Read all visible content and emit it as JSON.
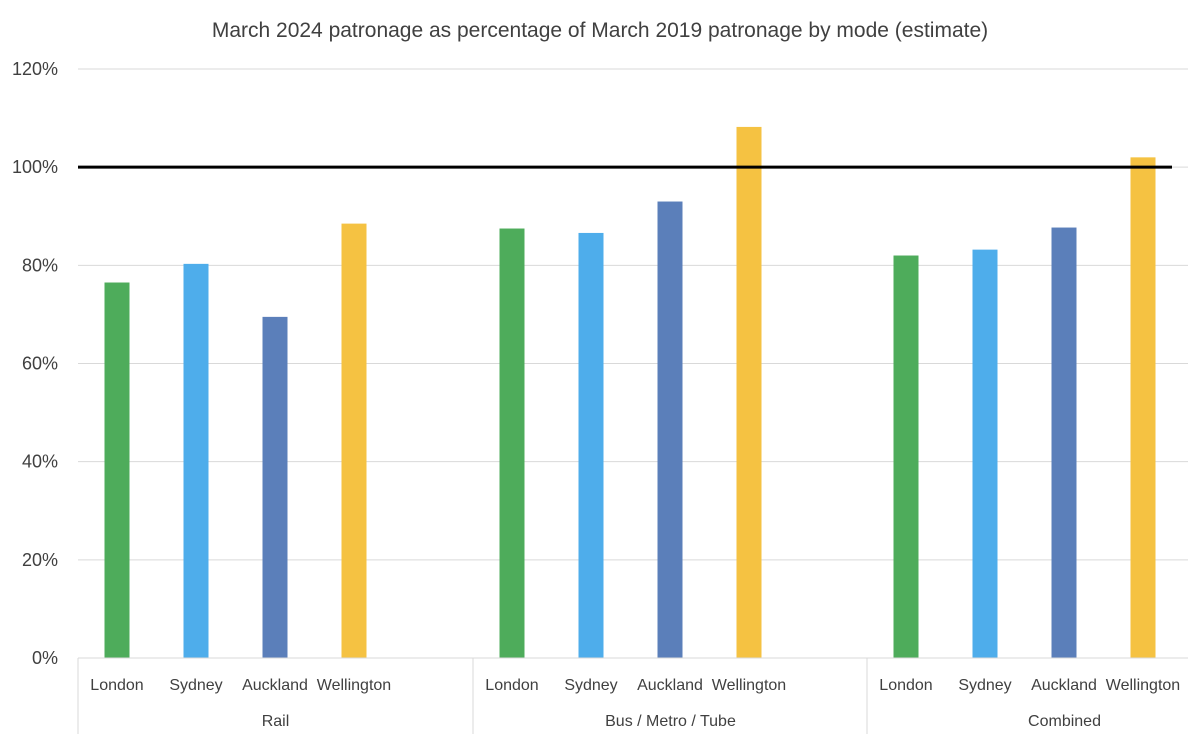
{
  "chart_data": {
    "type": "bar",
    "title": "March 2024 patronage as percentage of March 2019 patronage by mode (estimate)",
    "xlabel": "",
    "ylabel": "",
    "ylim": [
      0,
      120
    ],
    "yticks": [
      "0%",
      "20%",
      "40%",
      "60%",
      "80%",
      "100%",
      "120%"
    ],
    "ytick_values": [
      0,
      20,
      40,
      60,
      80,
      100,
      120
    ],
    "grid": true,
    "reference_line": 100,
    "groups": [
      {
        "label": "Rail",
        "bars": [
          {
            "category": "London",
            "value": 76.5
          },
          {
            "category": "Sydney",
            "value": 80.3
          },
          {
            "category": "Auckland",
            "value": 69.5
          },
          {
            "category": "Wellington",
            "value": 88.5
          }
        ]
      },
      {
        "label": "Bus / Metro / Tube",
        "bars": [
          {
            "category": "London",
            "value": 87.5
          },
          {
            "category": "Sydney",
            "value": 86.6
          },
          {
            "category": "Auckland",
            "value": 93.0
          },
          {
            "category": "Wellington",
            "value": 108.2
          }
        ]
      },
      {
        "label": "Combined",
        "bars": [
          {
            "category": "London",
            "value": 82.0
          },
          {
            "category": "Sydney",
            "value": 83.2
          },
          {
            "category": "Auckland",
            "value": 87.7
          },
          {
            "category": "Wellington",
            "value": 102.0
          }
        ]
      }
    ],
    "colors": {
      "London": "#4eac5b",
      "Sydney": "#4eadeb",
      "Auckland": "#5b7fba",
      "Wellington": "#f5c242",
      "grid": "#d9d9d9",
      "reference_line": "#000000",
      "text": "#404040"
    }
  }
}
